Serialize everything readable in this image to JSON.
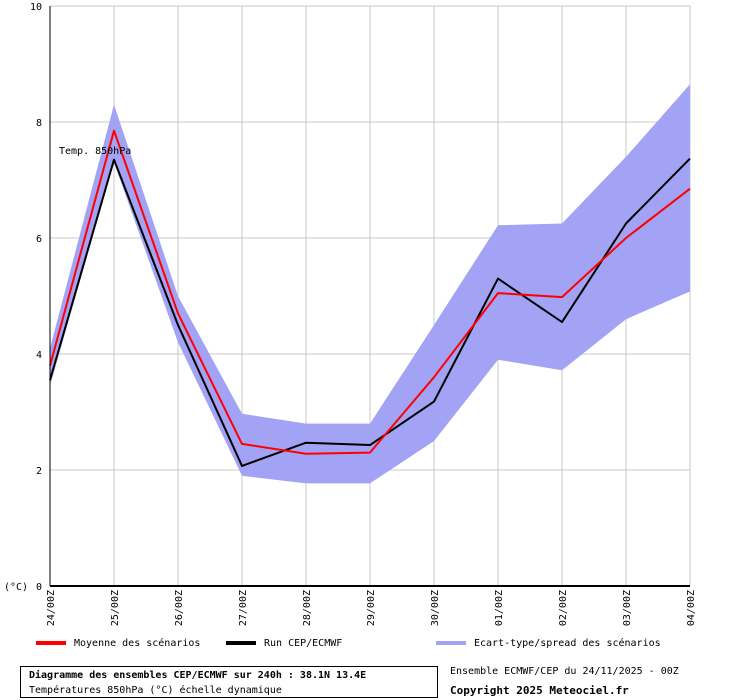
{
  "chart_data": {
    "type": "line",
    "annotation": "Temp. 850hPa",
    "y_unit_label": "(°C)",
    "ylim": [
      0,
      10
    ],
    "y_ticks": [
      0,
      2,
      4,
      6,
      8,
      10
    ],
    "categories": [
      "24/00Z",
      "25/00Z",
      "26/00Z",
      "27/00Z",
      "28/00Z",
      "29/00Z",
      "30/00Z",
      "01/00Z",
      "02/00Z",
      "03/00Z",
      "04/00Z"
    ],
    "grid": true,
    "legend_position": "bottom",
    "series": [
      {
        "name": "Moyenne des scénarios",
        "color": "#ff0000",
        "values": [
          3.8,
          7.85,
          4.7,
          2.45,
          2.28,
          2.3,
          3.6,
          5.05,
          4.98,
          6.0,
          6.85
        ]
      },
      {
        "name": "Run CEP/ECMWF",
        "color": "#000000",
        "values": [
          3.55,
          7.35,
          4.5,
          2.07,
          2.47,
          2.43,
          3.18,
          5.3,
          4.55,
          6.25,
          7.37
        ]
      }
    ],
    "spread": {
      "name": "Ecart-type/spread des scénarios",
      "color": "#a3a3f5",
      "upper": [
        4.1,
        8.3,
        5.0,
        2.97,
        2.8,
        2.8,
        4.5,
        6.22,
        6.25,
        7.4,
        8.65
      ],
      "lower": [
        3.45,
        7.3,
        4.2,
        1.9,
        1.77,
        1.77,
        2.5,
        3.9,
        3.72,
        4.6,
        5.08
      ]
    }
  },
  "footer": {
    "title": "Diagramme des ensembles CEP/ECMWF sur 240h : 38.1N 13.4E",
    "subtitle": "Températures 850hPa (°C) échelle dynamique",
    "run_info": "Ensemble ECMWF/CEP du 24/11/2025 - 00Z",
    "copyright": "Copyright 2025 Meteociel.fr"
  }
}
